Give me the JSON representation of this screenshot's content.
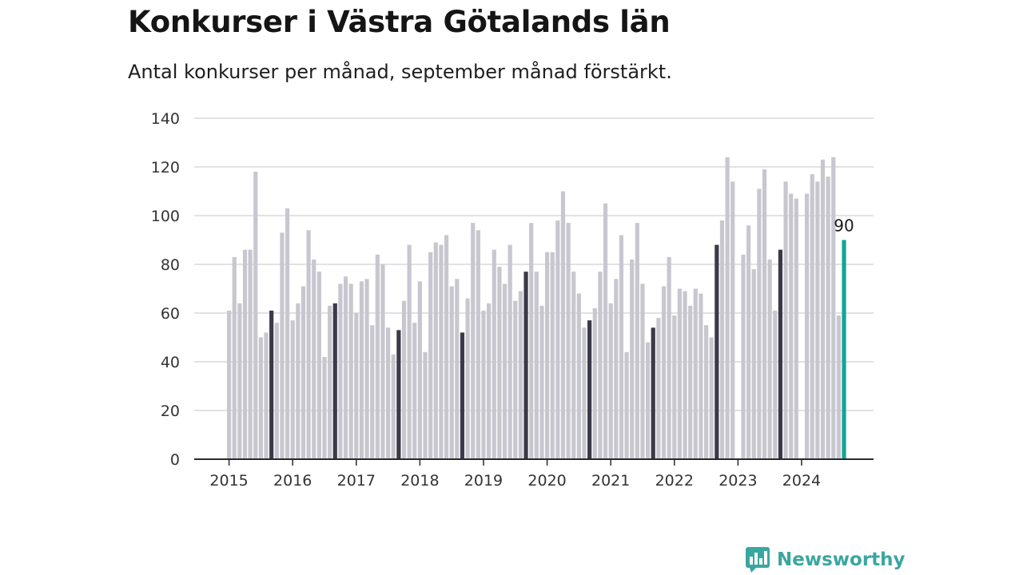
{
  "title": "Konkurser i Västra Götalands län",
  "subtitle": "Antal konkurser per månad, september månad förstärkt.",
  "brand": "Newsworthy",
  "colors": {
    "bar_default": "#c8c7cf",
    "bar_september": "#3b3a47",
    "bar_latest": "#13a596",
    "grid": "#d9d9de",
    "axis": "#2a2a2a",
    "brand": "#3aa6a0"
  },
  "chart_data": {
    "type": "bar",
    "title": "Konkurser i Västra Götalands län",
    "subtitle": "Antal konkurser per månad, september månad förstärkt.",
    "xlabel": "",
    "ylabel": "",
    "ylim": [
      0,
      140
    ],
    "yticks": [
      0,
      20,
      40,
      60,
      80,
      100,
      120,
      140
    ],
    "xticks": [
      "2015",
      "2016",
      "2017",
      "2018",
      "2019",
      "2020",
      "2021",
      "2022",
      "2023",
      "2024"
    ],
    "grid": true,
    "start": "2015-01",
    "highlight_month": "september",
    "latest_label": "90",
    "values": [
      61,
      83,
      64,
      86,
      86,
      118,
      50,
      52,
      61,
      56,
      93,
      103,
      57,
      64,
      71,
      94,
      82,
      77,
      42,
      63,
      64,
      72,
      75,
      72,
      60,
      73,
      74,
      55,
      84,
      80,
      54,
      43,
      53,
      65,
      88,
      56,
      73,
      44,
      85,
      89,
      88,
      92,
      71,
      74,
      52,
      66,
      97,
      94,
      61,
      64,
      86,
      79,
      72,
      88,
      65,
      69,
      77,
      97,
      77,
      63,
      85,
      85,
      98,
      110,
      97,
      77,
      68,
      54,
      57,
      62,
      77,
      105,
      64,
      74,
      92,
      44,
      82,
      97,
      72,
      48,
      54,
      58,
      71,
      83,
      59,
      70,
      69,
      63,
      70,
      68,
      55,
      50,
      88,
      98,
      124,
      114,
      null,
      84,
      96,
      78,
      111,
      119,
      82,
      61,
      86,
      114,
      109,
      107,
      null,
      109,
      117,
      114,
      123,
      116,
      124,
      59,
      90
    ]
  }
}
